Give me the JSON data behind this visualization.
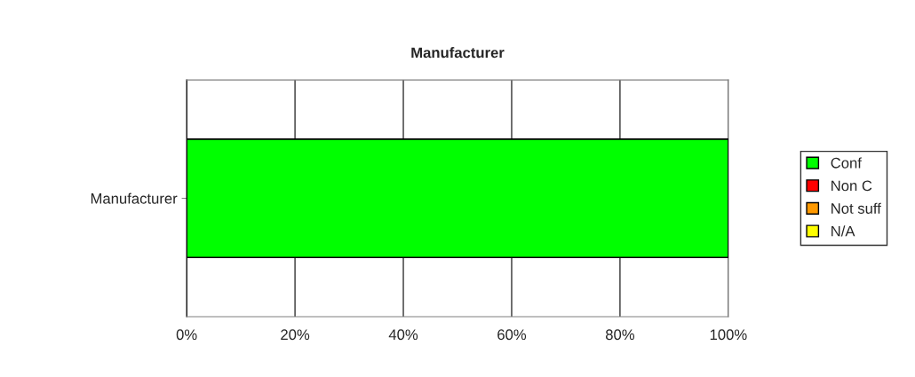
{
  "chart_data": {
    "type": "bar",
    "title": "Manufacturer",
    "orientation": "horizontal",
    "stacked": true,
    "categories": [
      "Manufacturer"
    ],
    "series": [
      {
        "name": "Conf",
        "color": "#00ff00",
        "values": [
          100
        ]
      },
      {
        "name": "Non C",
        "color": "#ff0000",
        "values": [
          0
        ]
      },
      {
        "name": "Not suff",
        "color": "#ff9900",
        "values": [
          0
        ]
      },
      {
        "name": "N/A",
        "color": "#ffff00",
        "values": [
          0
        ]
      }
    ],
    "xlim": [
      0,
      100
    ],
    "xticks": [
      {
        "value": 0,
        "label": "0%"
      },
      {
        "value": 20,
        "label": "20%"
      },
      {
        "value": 40,
        "label": "40%"
      },
      {
        "value": 60,
        "label": "60%"
      },
      {
        "value": 80,
        "label": "80%"
      },
      {
        "value": 100,
        "label": "100%"
      }
    ],
    "grid": "x",
    "legend": "right"
  }
}
